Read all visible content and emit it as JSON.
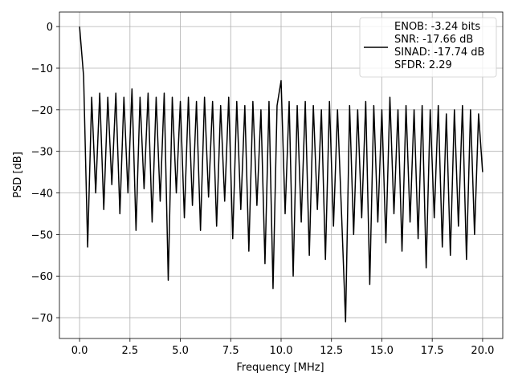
{
  "chart_data": {
    "type": "line",
    "xlabel": "Frequency [MHz]",
    "ylabel": "PSD [dB]",
    "x": [
      0,
      0.2,
      0.4,
      0.6,
      0.8,
      1.0,
      1.2,
      1.4,
      1.6,
      1.8,
      2.0,
      2.2,
      2.4,
      2.6,
      2.8,
      3.0,
      3.2,
      3.4,
      3.6,
      3.8,
      4.0,
      4.2,
      4.4,
      4.6,
      4.8,
      5.0,
      5.2,
      5.4,
      5.6,
      5.8,
      6.0,
      6.2,
      6.4,
      6.6,
      6.8,
      7.0,
      7.2,
      7.4,
      7.6,
      7.8,
      8.0,
      8.2,
      8.4,
      8.6,
      8.8,
      9.0,
      9.2,
      9.4,
      9.6,
      9.8,
      10.0,
      10.2,
      10.4,
      10.6,
      10.8,
      11.0,
      11.2,
      11.4,
      11.6,
      11.8,
      12.0,
      12.2,
      12.4,
      12.6,
      12.8,
      13.0,
      13.2,
      13.4,
      13.6,
      13.8,
      14.0,
      14.2,
      14.4,
      14.6,
      14.8,
      15.0,
      15.2,
      15.4,
      15.6,
      15.8,
      16.0,
      16.2,
      16.4,
      16.6,
      16.8,
      17.0,
      17.2,
      17.4,
      17.6,
      17.8,
      18.0,
      18.2,
      18.4,
      18.6,
      18.8,
      19.0,
      19.2,
      19.4,
      19.6,
      19.8,
      20.0
    ],
    "series": [
      {
        "name": "ENOB: -3.24 bits\nSNR: -17.66 dB\nSINAD: -17.74 dB\nSFDR: 2.29",
        "color": "#000000",
        "values": [
          0,
          -12,
          -53,
          -17,
          -40,
          -16,
          -44,
          -17,
          -38,
          -16,
          -45,
          -17,
          -40,
          -15,
          -49,
          -17,
          -39,
          -16,
          -47,
          -17,
          -42,
          -16,
          -61,
          -17,
          -40,
          -18,
          -46,
          -17,
          -43,
          -18,
          -49,
          -17,
          -41,
          -18,
          -48,
          -19,
          -42,
          -17,
          -51,
          -18,
          -44,
          -19,
          -54,
          -18,
          -43,
          -20,
          -57,
          -18,
          -63,
          -19,
          -13,
          -45,
          -18,
          -60,
          -19,
          -47,
          -18,
          -55,
          -19,
          -44,
          -20,
          -56,
          -18,
          -48,
          -20,
          -45,
          -71,
          -19,
          -50,
          -20,
          -46,
          -18,
          -62,
          -19,
          -47,
          -20,
          -52,
          -17,
          -45,
          -20,
          -54,
          -19,
          -47,
          -20,
          -51,
          -19,
          -58,
          -20,
          -46,
          -19,
          -53,
          -21,
          -55,
          -20,
          -48,
          -19,
          -56,
          -20,
          -50,
          -21,
          -35
        ]
      }
    ],
    "xlim": [
      -1,
      21
    ],
    "xticks": [
      {
        "value": 0,
        "label": "0.0"
      },
      2.5,
      {
        "value": 5,
        "label": "5.0"
      },
      7.5,
      {
        "value": 10,
        "label": "10.0"
      },
      12.5,
      {
        "value": 15,
        "label": "15.0"
      },
      17.5,
      {
        "value": 20,
        "label": "20.0"
      }
    ],
    "ylim": [
      -75,
      3.5
    ],
    "yticks": [
      {
        "value": -70,
        "label": "−70"
      },
      {
        "value": -60,
        "label": "−60"
      },
      {
        "value": -50,
        "label": "−50"
      },
      {
        "value": -40,
        "label": "−40"
      },
      {
        "value": -30,
        "label": "−30"
      },
      {
        "value": -20,
        "label": "−20"
      },
      {
        "value": -10,
        "label": "−10"
      },
      0
    ],
    "grid": true,
    "legend": "upper right"
  }
}
